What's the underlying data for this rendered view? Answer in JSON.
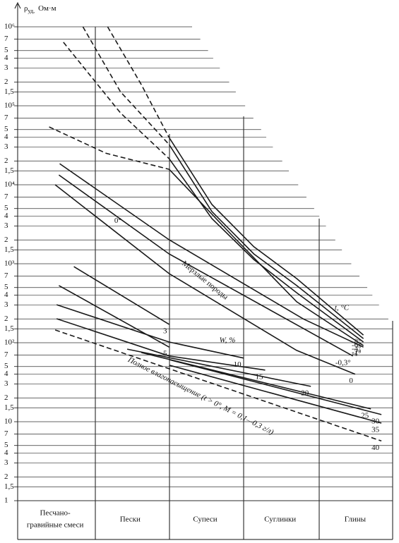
{
  "chart_data": {
    "type": "line",
    "y_label": "ρ",
    "y_label_sub": "уд,",
    "y_unit": "Ом·м",
    "log_y": true,
    "ylim": [
      1,
      1000000
    ],
    "xlim": [
      0,
      5
    ],
    "grid": true,
    "categories": [
      [
        "Песчано-",
        "гравийные смеси"
      ],
      "Пески",
      "Супеси",
      "Суглинки",
      "Глины"
    ],
    "yticks": [
      1,
      {
        "value": 1.5,
        "label": "1,5"
      },
      2,
      3,
      4,
      5,
      7,
      10,
      {
        "value": 15,
        "label": "1,5"
      },
      {
        "value": 20,
        "label": "2"
      },
      {
        "value": 30,
        "label": "3"
      },
      {
        "value": 40,
        "label": "4"
      },
      {
        "value": 50,
        "label": "5"
      },
      {
        "value": 70,
        "label": "7"
      },
      {
        "value": 100,
        "label": "10²"
      },
      {
        "value": 150,
        "label": "1,5"
      },
      {
        "value": 200,
        "label": "2"
      },
      {
        "value": 300,
        "label": "3"
      },
      {
        "value": 400,
        "label": "4"
      },
      {
        "value": 500,
        "label": "5"
      },
      {
        "value": 700,
        "label": "7"
      },
      {
        "value": 1000,
        "label": "10³"
      },
      {
        "value": 1500,
        "label": "1,5"
      },
      {
        "value": 2000,
        "label": "2"
      },
      {
        "value": 3000,
        "label": "3"
      },
      {
        "value": 4000,
        "label": "4"
      },
      {
        "value": 5000,
        "label": "5"
      },
      {
        "value": 7000,
        "label": "7"
      },
      {
        "value": 10000,
        "label": "10⁴"
      },
      {
        "value": 15000,
        "label": "1,5"
      },
      {
        "value": 20000,
        "label": "2"
      },
      {
        "value": 30000,
        "label": "3"
      },
      {
        "value": 40000,
        "label": "4"
      },
      {
        "value": 50000,
        "label": "5"
      },
      {
        "value": 70000,
        "label": "7"
      },
      {
        "value": 100000,
        "label": "10⁵"
      },
      {
        "value": 150000,
        "label": "1,5"
      },
      {
        "value": 200000,
        "label": "2"
      },
      {
        "value": 300000,
        "label": "3"
      },
      {
        "value": 400000,
        "label": "4"
      },
      {
        "value": 500000,
        "label": "5"
      },
      {
        "value": 700000,
        "label": "7"
      },
      {
        "value": 1000000,
        "label": "10⁶"
      }
    ],
    "series": [
      {
        "style": "dashed",
        "color": "#1a1a1a",
        "x": [
          1.2,
          1.65,
          2.02
        ],
        "values": [
          1000000,
          185000,
          39600
        ]
      },
      {
        "name": "-8°",
        "style": "solid",
        "color": "#1a1a1a",
        "x": [
          2.02,
          2.59,
          3.15,
          3.72,
          4.61
        ],
        "values": [
          39600,
          5620,
          1640,
          650,
          125
        ]
      },
      {
        "style": "dashed",
        "color": "#1a1a1a",
        "x": [
          0.87,
          1.37,
          2.02
        ],
        "values": [
          1000000,
          151000,
          32300
        ]
      },
      {
        "name": "-6°",
        "style": "solid",
        "color": "#1a1a1a",
        "x": [
          2.02,
          2.59,
          3.15,
          3.72,
          4.61
        ],
        "values": [
          32300,
          4580,
          1330,
          530,
          113
        ]
      },
      {
        "style": "dashed",
        "color": "#1a1a1a",
        "x": [
          0.61,
          1.37,
          2.02
        ],
        "values": [
          637000,
          81500,
          21400
        ]
      },
      {
        "name": "-4°",
        "style": "solid",
        "color": "#1a1a1a",
        "x": [
          2.02,
          2.59,
          3.15,
          3.72,
          4.61
        ],
        "values": [
          21400,
          3730,
          1130,
          430,
          102
        ]
      },
      {
        "style": "dashed",
        "color": "#1a1a1a",
        "x": [
          0.42,
          1.18,
          2.02
        ],
        "values": [
          54000,
          25000,
          15700
        ]
      },
      {
        "name": "-2°",
        "style": "solid",
        "color": "#1a1a1a",
        "x": [
          2.02,
          2.87,
          3.72,
          4.61
        ],
        "values": [
          15700,
          2230,
          330,
          92
        ]
      },
      {
        "name": "-1°",
        "style": "solid",
        "color": "#1a1a1a",
        "x": [
          0.56,
          2.02,
          3.81,
          4.61
        ],
        "values": [
          18500,
          2010,
          200,
          88
        ]
      },
      {
        "name": "-0,3°",
        "style": "solid",
        "color": "#1a1a1a",
        "x": [
          0.55,
          2.02,
          4.47
        ],
        "values": [
          13300,
          1330,
          68
        ]
      },
      {
        "name": "0",
        "label_left": "0°",
        "style": "solid",
        "color": "#1a1a1a",
        "x": [
          0.5,
          2.02,
          3.72,
          4.5
        ],
        "values": [
          10000,
          750,
          80,
          40
        ]
      },
      {
        "name": "3",
        "style": "solid",
        "color": "#1a1a1a",
        "x": [
          0.75,
          2.02
        ],
        "values": [
          920,
          171
        ]
      },
      {
        "name": "5",
        "style": "solid",
        "color": "#1a1a1a",
        "x": [
          0.55,
          2.02
        ],
        "values": [
          530,
          88
        ]
      },
      {
        "name": "10",
        "style": "solid",
        "color": "#1a1a1a",
        "x": [
          0.52,
          2.02,
          3.01
        ],
        "values": [
          303,
          102,
          64
        ]
      },
      {
        "name": "15",
        "style": "solid",
        "color": "#1a1a1a",
        "x": [
          0.52,
          2.02,
          3.3
        ],
        "values": [
          201,
          68,
          45
        ]
      },
      {
        "name": "20",
        "style": "solid",
        "color": "#1a1a1a",
        "x": [
          1.46,
          3.91
        ],
        "values": [
          83,
          28
        ]
      },
      {
        "name": "25",
        "style": "solid",
        "color": "#1a1a1a",
        "x": [
          1.65,
          4.71
        ],
        "values": [
          75,
          14.5
        ]
      },
      {
        "name": "30",
        "style": "solid",
        "color": "#1a1a1a",
        "x": [
          2.02,
          4.85
        ],
        "values": [
          61,
          12.3
        ]
      },
      {
        "name": "35",
        "style": "solid",
        "color": "#1a1a1a",
        "x": [
          2.02,
          4.85
        ],
        "values": [
          52,
          9.6
        ]
      },
      {
        "name": "40",
        "style": "dashed",
        "color": "#1a1a1a",
        "x": [
          0.5,
          4.85
        ],
        "values": [
          145,
          5.7
        ]
      }
    ],
    "annotations": [
      "Мерзлые породы",
      "W, %",
      "t, °C",
      "Полное влагонасыщение (t > 0°, M = 0,1—0,3 г/л)"
    ]
  }
}
